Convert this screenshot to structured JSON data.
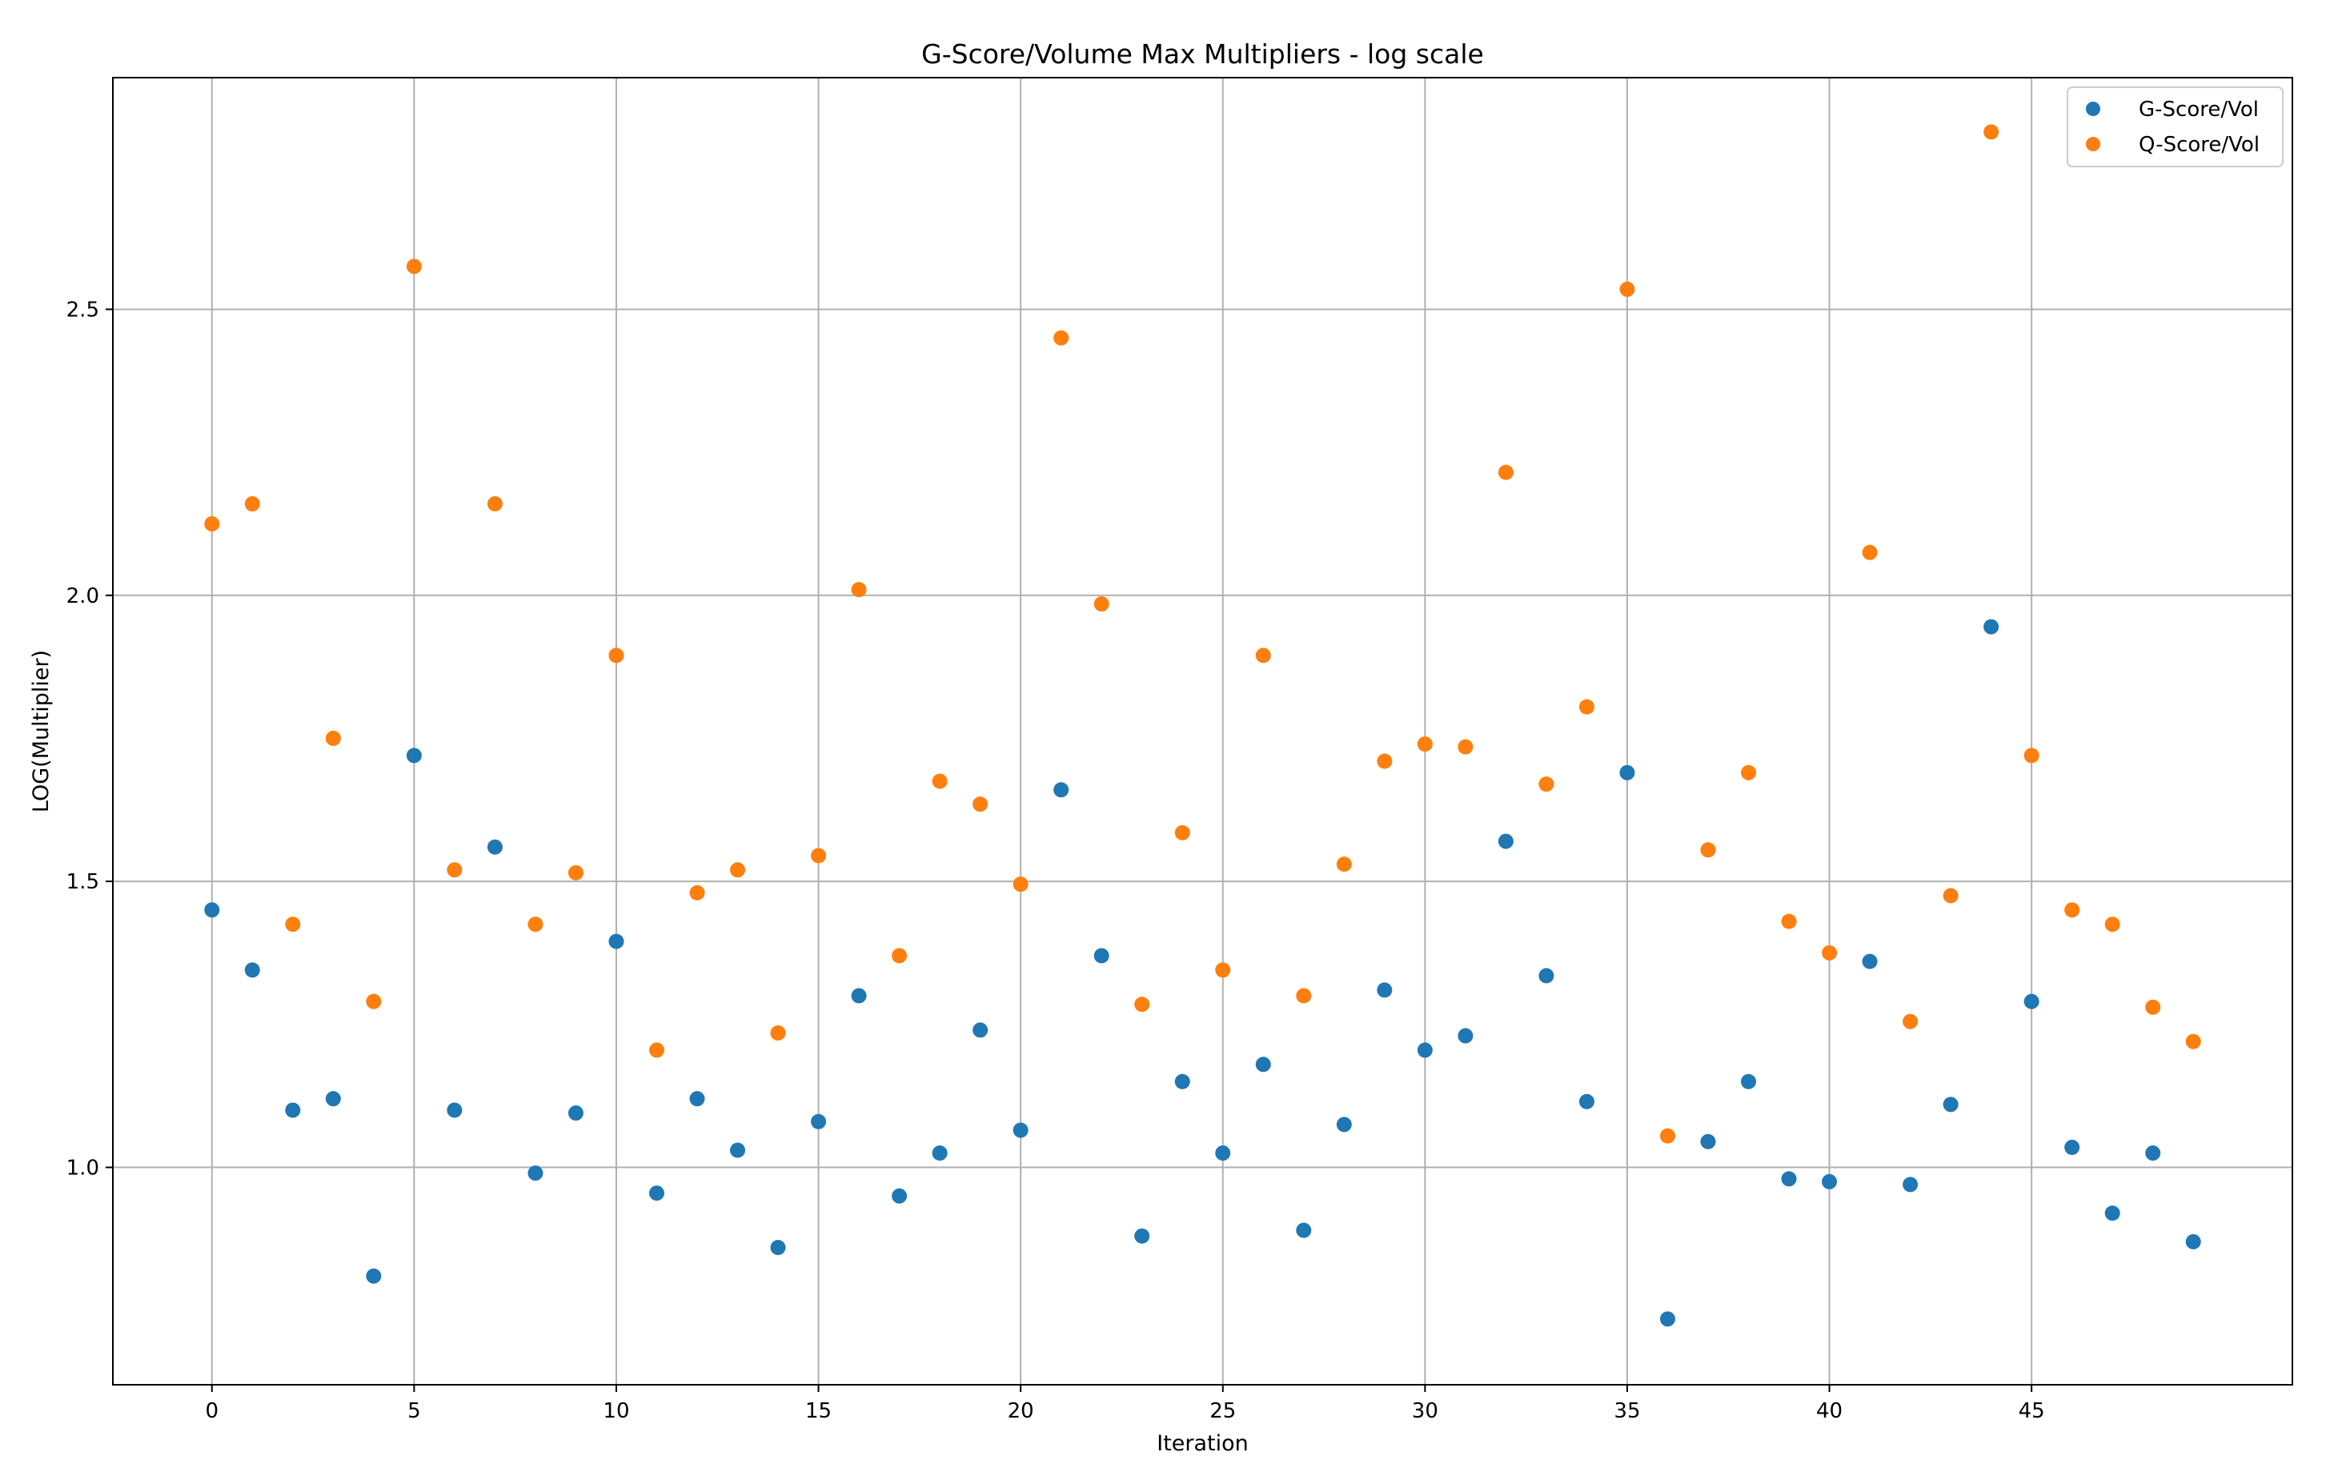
{
  "chart_data": {
    "type": "scatter",
    "title": "G-Score/Volume Max Multipliers - log scale",
    "xlabel": "Iteration",
    "ylabel": "LOG(Multiplier)",
    "xlim": [
      -2.45,
      51.45
    ],
    "ylim": [
      0.62,
      2.905
    ],
    "xticks": [
      0,
      5,
      10,
      15,
      20,
      25,
      30,
      35,
      40,
      45
    ],
    "xtick_labels": [
      "0",
      "5",
      "10",
      "15",
      "20",
      "25",
      "30",
      "35",
      "40",
      "45"
    ],
    "yticks": [
      1.0,
      1.5,
      2.0,
      2.5
    ],
    "ytick_labels": [
      "1.0",
      "1.5",
      "2.0",
      "2.5"
    ],
    "grid": true,
    "legend_position": "top-right",
    "x": [
      0,
      1,
      2,
      3,
      4,
      5,
      6,
      7,
      8,
      9,
      10,
      11,
      12,
      13,
      14,
      15,
      16,
      17,
      18,
      19,
      20,
      21,
      22,
      23,
      24,
      25,
      26,
      27,
      28,
      29,
      30,
      31,
      32,
      33,
      34,
      35,
      36,
      37,
      38,
      39,
      40,
      41,
      42,
      43,
      44,
      45,
      46,
      47,
      48,
      49
    ],
    "series": [
      {
        "name": "G-Score/Vol",
        "color": "#1f77b4",
        "values": [
          1.45,
          1.345,
          1.1,
          1.12,
          0.81,
          1.72,
          1.1,
          1.56,
          0.99,
          1.095,
          1.395,
          0.955,
          1.12,
          1.03,
          0.86,
          1.08,
          1.3,
          0.95,
          1.025,
          1.24,
          1.065,
          1.66,
          1.37,
          0.88,
          1.15,
          1.025,
          1.18,
          0.89,
          1.075,
          1.31,
          1.205,
          1.23,
          1.57,
          1.335,
          1.115,
          1.69,
          0.735,
          1.045,
          1.15,
          0.98,
          0.975,
          1.36,
          0.97,
          1.11,
          1.945,
          1.29,
          1.035,
          0.92,
          1.025,
          0.87
        ]
      },
      {
        "name": "Q-Score/Vol",
        "color": "#ff7f0e",
        "values": [
          2.125,
          2.16,
          1.425,
          1.75,
          1.29,
          2.575,
          1.52,
          2.16,
          1.425,
          1.515,
          1.895,
          1.205,
          1.48,
          1.52,
          1.235,
          1.545,
          2.01,
          1.37,
          1.675,
          1.635,
          1.495,
          2.45,
          1.985,
          1.285,
          1.585,
          1.345,
          1.895,
          1.3,
          1.53,
          1.71,
          1.74,
          1.735,
          2.215,
          1.67,
          1.805,
          2.535,
          1.055,
          1.555,
          1.69,
          1.43,
          1.375,
          2.075,
          1.255,
          1.475,
          2.81,
          1.72,
          1.45,
          1.425,
          1.28,
          1.22
        ]
      }
    ]
  }
}
